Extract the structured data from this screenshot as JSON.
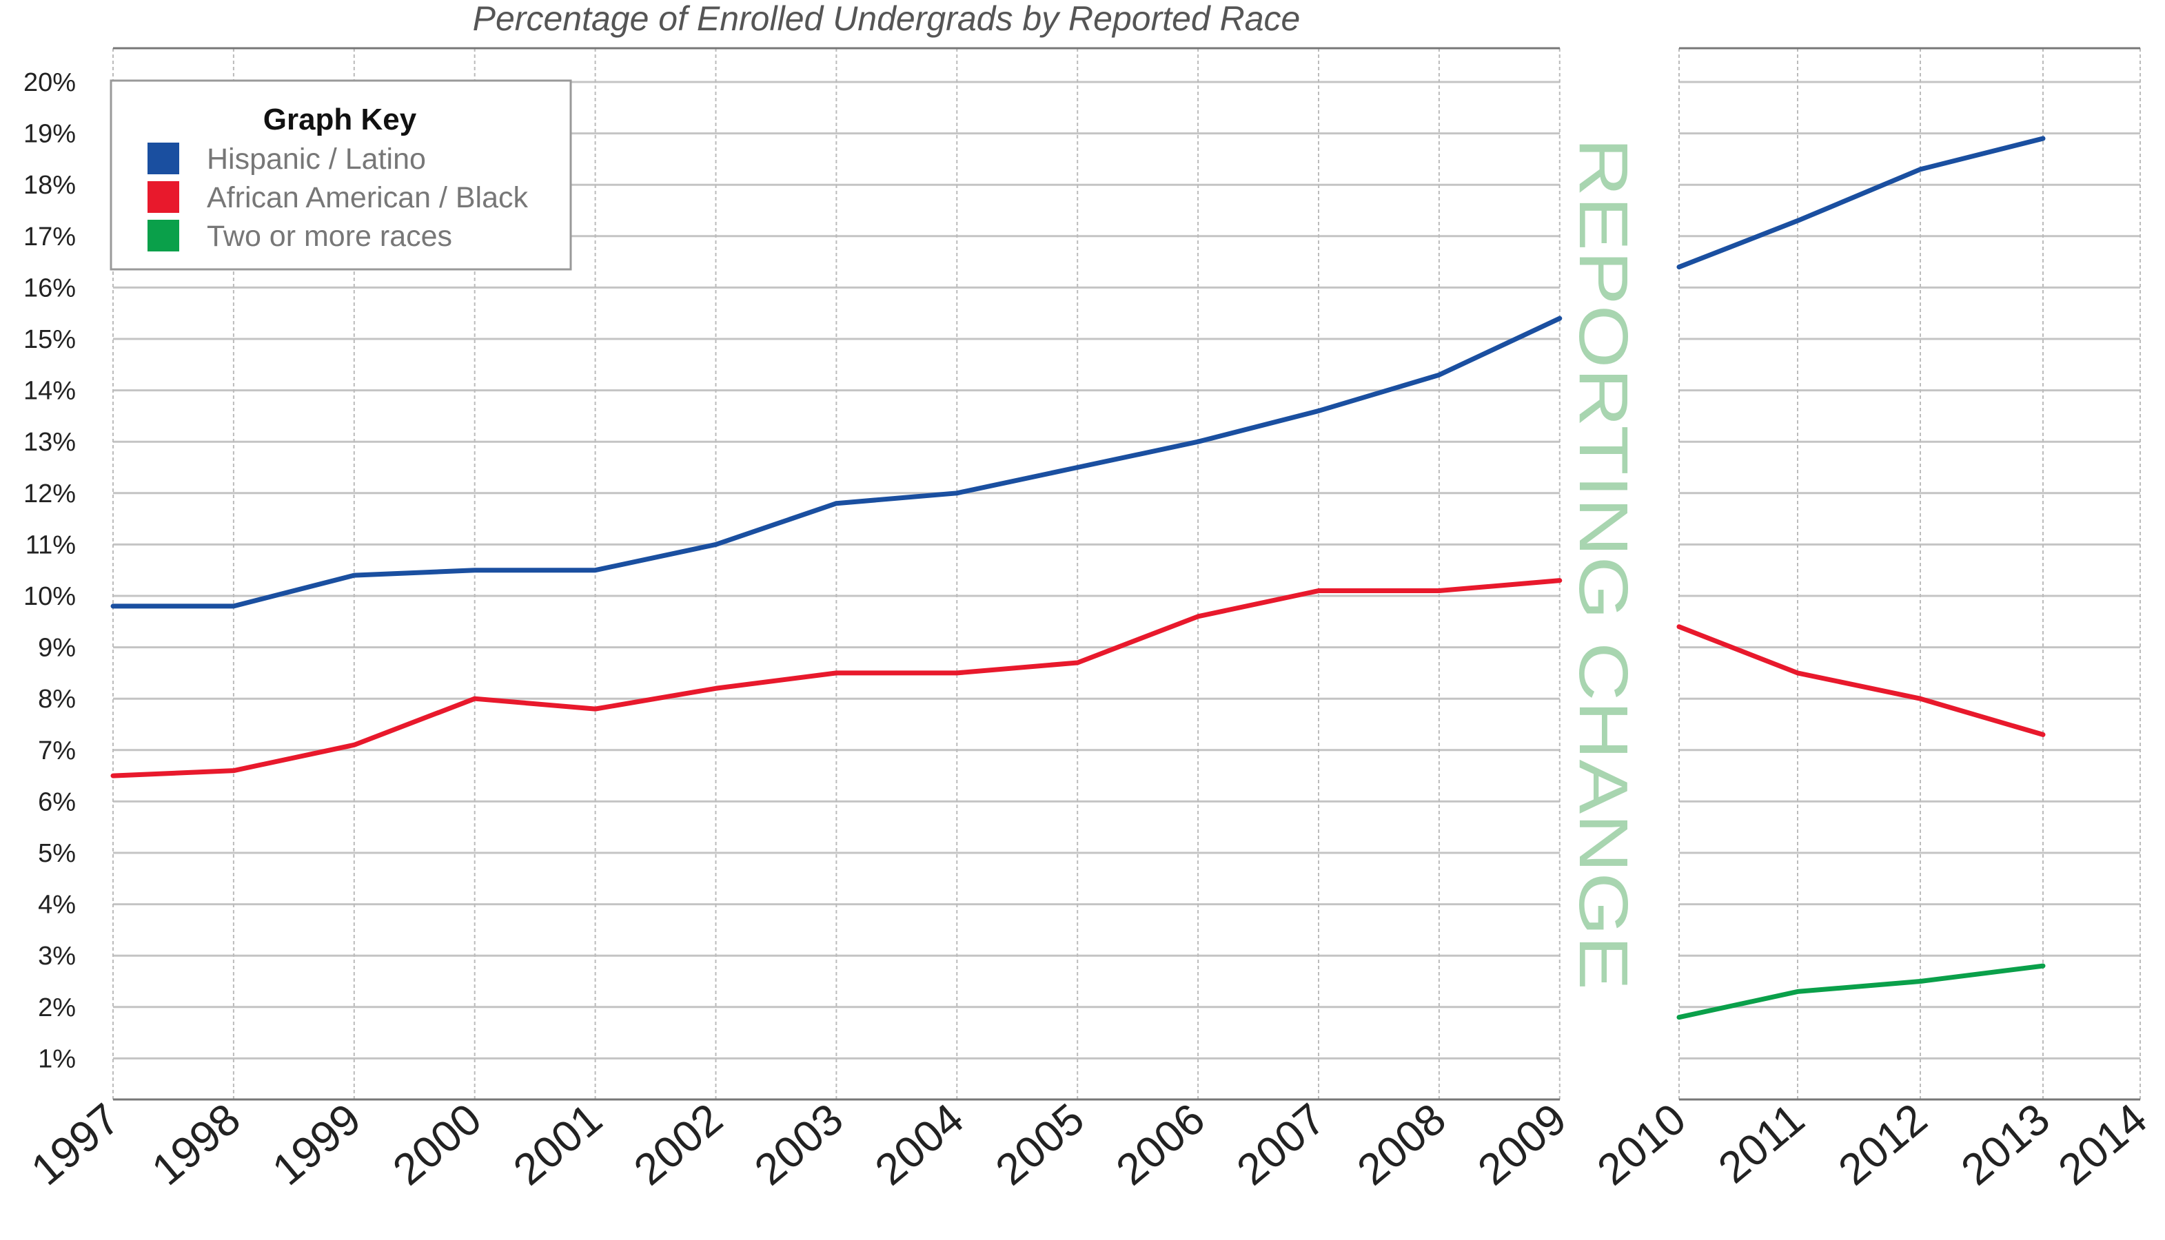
{
  "chart_data": {
    "type": "line",
    "title": "Percentage of Enrolled Undergrads by Reported Race",
    "annotation": "REPORTING CHANGE",
    "legend": {
      "title": "Graph Key",
      "placement": "top-left"
    },
    "y_ticks": [
      "1%",
      "2%",
      "3%",
      "4%",
      "5%",
      "6%",
      "7%",
      "8%",
      "9%",
      "10%",
      "11%",
      "12%",
      "13%",
      "14%",
      "15%",
      "16%",
      "17%",
      "18%",
      "19%",
      "20%"
    ],
    "ylim": [
      0,
      20.6
    ],
    "grid": true,
    "panels": [
      {
        "x_ticks": [
          "1997",
          "1998",
          "1999",
          "2000",
          "2001",
          "2002",
          "2003",
          "2004",
          "2005",
          "2006",
          "2007",
          "2008",
          "2009"
        ]
      },
      {
        "x_ticks": [
          "2010",
          "2011",
          "2012",
          "2013",
          "2014"
        ]
      }
    ],
    "series": [
      {
        "name": "Hispanic / Latino",
        "color": "#1a4fa0",
        "x": [
          1997,
          1998,
          1999,
          2000,
          2001,
          2002,
          2003,
          2004,
          2005,
          2006,
          2007,
          2008,
          2009,
          2010,
          2011,
          2012,
          2013
        ],
        "values": [
          9.8,
          9.8,
          10.4,
          10.5,
          10.5,
          11.0,
          11.8,
          12.0,
          12.5,
          13.0,
          13.6,
          14.3,
          15.4,
          16.4,
          17.3,
          18.3,
          18.9
        ]
      },
      {
        "name": "African American / Black",
        "color": "#e8192c",
        "x": [
          1997,
          1998,
          1999,
          2000,
          2001,
          2002,
          2003,
          2004,
          2005,
          2006,
          2007,
          2008,
          2009,
          2010,
          2011,
          2012,
          2013
        ],
        "values": [
          6.5,
          6.6,
          7.1,
          8.0,
          7.8,
          8.2,
          8.5,
          8.5,
          8.7,
          9.6,
          10.1,
          10.1,
          10.3,
          9.4,
          8.5,
          8.0,
          7.3
        ]
      },
      {
        "name": "Two or more races",
        "color": "#0aa04a",
        "x": [
          2010,
          2011,
          2012,
          2013
        ],
        "values": [
          1.8,
          2.3,
          2.5,
          2.8
        ]
      }
    ],
    "annotation_color": "#a8d5b0"
  }
}
